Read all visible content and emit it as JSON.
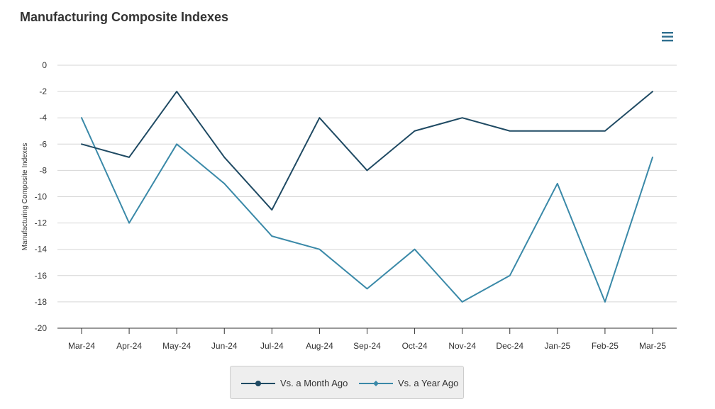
{
  "title": "Manufacturing Composite Indexes",
  "menu": {
    "icon": "hamburger-menu-icon"
  },
  "colors": {
    "month": "#1f4a63",
    "year": "#3a89a8",
    "grid": "#d6d6d6",
    "axis": "#333333"
  },
  "chart_data": {
    "type": "line",
    "title": "Manufacturing Composite Indexes",
    "xlabel": "",
    "ylabel": "Manufacturing Composite Indexes",
    "categories": [
      "Mar-24",
      "Apr-24",
      "May-24",
      "Jun-24",
      "Jul-24",
      "Aug-24",
      "Sep-24",
      "Oct-24",
      "Nov-24",
      "Dec-24",
      "Jan-25",
      "Feb-25",
      "Mar-25"
    ],
    "ylim": [
      -20,
      0
    ],
    "yticks": [
      0,
      -2,
      -4,
      -6,
      -8,
      -10,
      -12,
      -14,
      -16,
      -18,
      -20
    ],
    "grid": true,
    "legend_position": "bottom-center",
    "series": [
      {
        "name": "Vs. a Month Ago",
        "marker": "circle",
        "values": [
          -6,
          -7,
          -2,
          -7,
          -11,
          -4,
          -8,
          -5,
          -4,
          -5,
          -5,
          -5,
          -2
        ]
      },
      {
        "name": "Vs. a Year Ago",
        "marker": "diamond",
        "values": [
          -4,
          -12,
          -6,
          -9,
          -13,
          -14,
          -17,
          -14,
          -18,
          -16,
          -9,
          -18,
          -7
        ]
      }
    ]
  }
}
